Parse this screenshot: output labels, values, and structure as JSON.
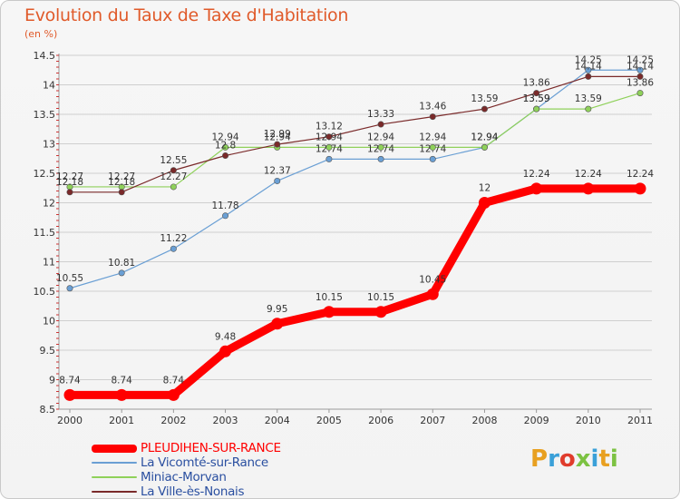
{
  "title": "Evolution du Taux de Taxe d'Habitation",
  "unit_label": "(en %)",
  "logo_text": "Proxiti",
  "logo_colors": [
    "#e8a020",
    "#3aa0d8",
    "#e03c2c",
    "#7cc242",
    "#3aa0d8",
    "#e8a020",
    "#7cc242"
  ],
  "colors": {
    "title": "#e05a2a",
    "grid": "#cfcfcf",
    "axis": "#9a9a9a",
    "axis_tick_marks": "#cc3333",
    "label": "#333333"
  },
  "chart_data": {
    "type": "line",
    "title": "Evolution du Taux de Taxe d'Habitation",
    "ylabel": "(en %)",
    "xlabel": "",
    "x": [
      "2000",
      "2001",
      "2002",
      "2003",
      "2004",
      "2005",
      "2006",
      "2007",
      "2008",
      "2009",
      "2010",
      "2011"
    ],
    "ylim": [
      8.5,
      14.5
    ],
    "yticks": [
      "8.5",
      "9",
      "9.5",
      "10",
      "10.5",
      "11",
      "11.5",
      "12",
      "12.5",
      "13",
      "13.5",
      "14",
      "14.5"
    ],
    "grid": "horizontal",
    "legend_position": "bottom-left",
    "series": [
      {
        "name": "PLEUDIHEN-SUR-RANCE",
        "color": "#ff0000",
        "bold": true,
        "values": [
          8.74,
          8.74,
          8.74,
          9.48,
          9.95,
          10.15,
          10.15,
          10.45,
          12,
          12.24,
          12.24,
          12.24
        ],
        "labels": [
          "8.74",
          "8.74",
          "8.74",
          "9.48",
          "9.95",
          "10.15",
          "10.15",
          "10.45",
          "12",
          "12.24",
          "12.24",
          "12.24"
        ]
      },
      {
        "name": "La Vicomté-sur-Rance",
        "color": "#6a9fd4",
        "values": [
          10.55,
          10.81,
          11.22,
          11.78,
          12.37,
          12.74,
          12.74,
          12.74,
          12.94,
          13.59,
          14.25,
          14.25
        ],
        "labels": [
          "10.55",
          "10.81",
          "11.22",
          "11.78",
          "12.37",
          "12.74",
          "12.74",
          "12.74",
          "12.94",
          "13.59",
          "14.25",
          "14.25"
        ]
      },
      {
        "name": "Miniac-Morvan",
        "color": "#8fd15a",
        "values": [
          12.27,
          12.27,
          12.27,
          12.94,
          12.94,
          12.94,
          12.94,
          12.94,
          12.94,
          13.59,
          13.59,
          13.86
        ],
        "labels": [
          "12.27",
          "12.27",
          "12.27",
          "12.94",
          "12.94",
          "12.94",
          "12.94",
          "12.94",
          "12.94",
          "13.59",
          "13.59",
          "13.86"
        ]
      },
      {
        "name": "La Ville-ès-Nonais",
        "color": "#7a2a2a",
        "values": [
          12.18,
          12.18,
          12.55,
          12.8,
          12.99,
          13.12,
          13.33,
          13.46,
          13.59,
          13.86,
          14.14,
          14.14
        ],
        "labels": [
          "12.18",
          "12.18",
          "12.55",
          "12.8",
          "12.99",
          "13.12",
          "13.33",
          "13.46",
          "13.59",
          "13.86",
          "14.14",
          "14.14"
        ]
      }
    ]
  }
}
